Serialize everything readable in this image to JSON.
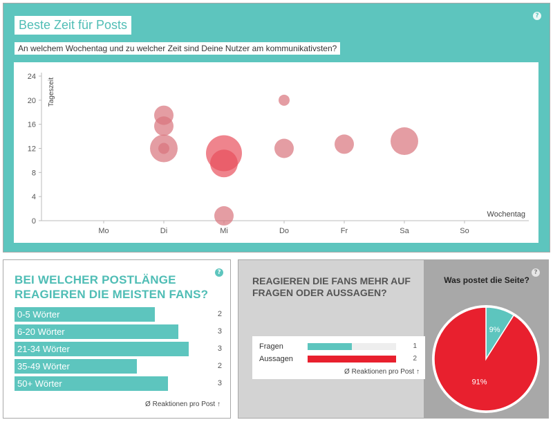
{
  "top": {
    "title": "Beste Zeit für Posts",
    "subtitle": "An welchem Wochentag und zu welcher Zeit sind Deine Nutzer am kommunikativsten?",
    "help": "?"
  },
  "chart_data": [
    {
      "type": "scatter",
      "xlabel": "Wochentag",
      "ylabel": "Tageszeit",
      "categories": [
        "Mo",
        "Di",
        "Mi",
        "Do",
        "Fr",
        "Sa",
        "So"
      ],
      "y_ticks": [
        "0",
        "4",
        "8",
        "12",
        "16",
        "20",
        "24"
      ],
      "ylim": [
        0,
        24
      ],
      "points": [
        {
          "x": "Di",
          "y": 17.5,
          "size": 2
        },
        {
          "x": "Di",
          "y": 15.7,
          "size": 2
        },
        {
          "x": "Di",
          "y": 12,
          "size": 3
        },
        {
          "x": "Di",
          "y": 12,
          "size": 1
        },
        {
          "x": "Mi",
          "y": 11.2,
          "size": 4
        },
        {
          "x": "Mi",
          "y": 9.5,
          "size": 3
        },
        {
          "x": "Mi",
          "y": 0.8,
          "size": 2
        },
        {
          "x": "Do",
          "y": 20,
          "size": 1
        },
        {
          "x": "Do",
          "y": 12,
          "size": 2
        },
        {
          "x": "Fr",
          "y": 12.7,
          "size": 2
        },
        {
          "x": "Sa",
          "y": 13.2,
          "size": 3
        }
      ]
    },
    {
      "type": "bar",
      "title": "Bei welcher Postlänge reagieren die meisten Fans?",
      "categories": [
        "0-5 Wörter",
        "6-20 Wörter",
        "21-34 Wörter",
        "35-49 Wörter",
        "50+ Wörter"
      ],
      "values": [
        2,
        3,
        3,
        2,
        3
      ],
      "bar_fill": [
        0.678,
        0.79,
        0.84,
        0.59,
        0.74
      ],
      "footnote": "Ø Reaktionen pro Post ↑"
    },
    {
      "type": "bar",
      "title": "Reagieren die Fans mehr auf Fragen oder Aussagen?",
      "categories": [
        "Fragen",
        "Aussagen"
      ],
      "values": [
        1,
        2
      ],
      "footnote": "Ø Reaktionen pro Post ↑"
    },
    {
      "type": "pie",
      "title": "Was postet die Seite?",
      "slices": [
        {
          "label": "9%",
          "value": 9
        },
        {
          "label": "91%",
          "value": 91
        }
      ]
    }
  ],
  "colors": {
    "teal": "#5dc5be",
    "bubble": "#d9737c",
    "bubble_strong": "#e8505c",
    "red": "#e8202e"
  }
}
